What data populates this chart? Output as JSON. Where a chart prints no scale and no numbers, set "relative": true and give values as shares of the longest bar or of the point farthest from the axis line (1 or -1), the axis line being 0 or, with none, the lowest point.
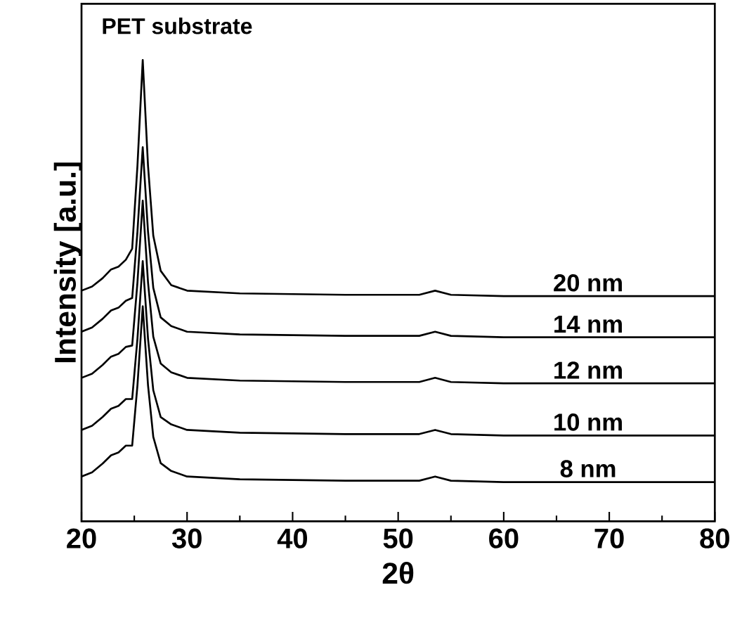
{
  "chart_data": {
    "type": "line",
    "relative": true,
    "xlabel": "2θ",
    "ylabel": "Intensity [a.u.]",
    "annotations": [
      "PET substrate"
    ],
    "xlim": [
      20,
      80
    ],
    "xticks": [
      20,
      30,
      40,
      50,
      60,
      70,
      80
    ],
    "grid": false,
    "legend": false,
    "marker": "none",
    "line_style": "solid",
    "x": [
      20,
      21,
      22,
      22.8,
      23.5,
      24.2,
      24.8,
      25.3,
      25.8,
      26.3,
      26.8,
      27.5,
      28.5,
      30,
      35,
      45,
      52,
      53.5,
      55,
      60,
      80
    ],
    "series": [
      {
        "name": "20 nm",
        "color": "#000000",
        "values": [
          0.5,
          0.509,
          0.527,
          0.546,
          0.552,
          0.567,
          0.591,
          0.771,
          1.0,
          0.771,
          0.619,
          0.543,
          0.512,
          0.5,
          0.494,
          0.491,
          0.491,
          0.5,
          0.491,
          0.488,
          0.488
        ]
      },
      {
        "name": "14 nm",
        "color": "#000000",
        "values": [
          0.411,
          0.42,
          0.439,
          0.457,
          0.463,
          0.478,
          0.484,
          0.628,
          0.811,
          0.628,
          0.506,
          0.442,
          0.423,
          0.411,
          0.405,
          0.402,
          0.402,
          0.411,
          0.402,
          0.399,
          0.399
        ]
      },
      {
        "name": "12 nm",
        "color": "#000000",
        "values": [
          0.311,
          0.32,
          0.339,
          0.357,
          0.363,
          0.378,
          0.381,
          0.518,
          0.695,
          0.518,
          0.4,
          0.342,
          0.323,
          0.311,
          0.305,
          0.302,
          0.302,
          0.311,
          0.302,
          0.299,
          0.299
        ]
      },
      {
        "name": "10 nm",
        "color": "#000000",
        "values": [
          0.198,
          0.207,
          0.226,
          0.244,
          0.25,
          0.265,
          0.265,
          0.396,
          0.564,
          0.396,
          0.284,
          0.226,
          0.21,
          0.198,
          0.192,
          0.189,
          0.189,
          0.198,
          0.189,
          0.186,
          0.186
        ]
      },
      {
        "name": "8 nm",
        "color": "#000000",
        "values": [
          0.097,
          0.106,
          0.125,
          0.143,
          0.149,
          0.164,
          0.164,
          0.295,
          0.466,
          0.295,
          0.183,
          0.126,
          0.109,
          0.097,
          0.091,
          0.088,
          0.088,
          0.097,
          0.088,
          0.085,
          0.085
        ]
      }
    ]
  }
}
